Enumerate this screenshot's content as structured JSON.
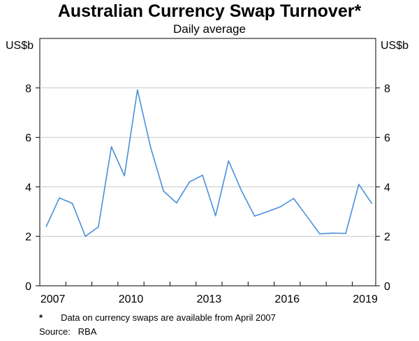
{
  "title": "Australian Currency Swap Turnover*",
  "subtitle": "Daily average",
  "unit_left": "US$b",
  "unit_right": "US$b",
  "footnotes": {
    "asterisk": "*",
    "note": "Data on currency swaps are available from April 2007",
    "source": "Source:   RBA"
  },
  "colors": {
    "line": "#4a90d9",
    "grid": "#c8c8c8",
    "axis": "#000000"
  },
  "chart_data": {
    "type": "line",
    "title": "Australian Currency Swap Turnover*",
    "subtitle": "Daily average",
    "ylabel": "US$b",
    "ylim": [
      0,
      10
    ],
    "yticks": [
      0,
      2,
      4,
      6,
      8
    ],
    "xlim": [
      2007.0,
      2019.9
    ],
    "xticks": [
      "2007",
      "2010",
      "2013",
      "2016",
      "2019"
    ],
    "grid": true,
    "series": [
      {
        "x": [
          2007.25,
          2007.75,
          2008.25,
          2008.75,
          2009.25,
          2009.75,
          2010.25,
          2010.75,
          2011.25,
          2011.75,
          2012.25,
          2012.75,
          2013.25,
          2013.75,
          2014.25,
          2014.75,
          2015.25,
          2015.75,
          2016.25,
          2016.75,
          2017.25,
          2017.75,
          2018.25,
          2018.75,
          2019.25,
          2019.75
        ],
        "values": [
          2.4,
          3.55,
          3.33,
          2.0,
          2.38,
          5.62,
          4.45,
          7.92,
          5.62,
          3.83,
          3.35,
          4.2,
          4.47,
          2.83,
          5.05,
          3.83,
          2.82,
          3.0,
          3.2,
          3.53,
          2.82,
          2.1,
          2.13,
          2.12,
          4.1,
          3.33
        ]
      }
    ]
  }
}
